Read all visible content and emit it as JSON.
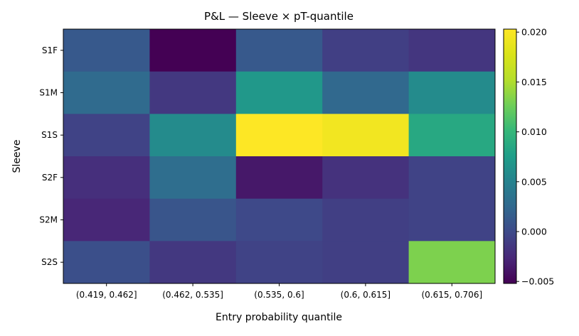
{
  "chart_data": {
    "type": "heatmap",
    "title": "P&L — Sleeve × pT-quantile",
    "xlabel": "Entry probability quantile",
    "ylabel": "Sleeve",
    "x_categories": [
      "(0.419, 0.462]",
      "(0.462, 0.535]",
      "(0.535, 0.6]",
      "(0.6, 0.615]",
      "(0.615, 0.706]"
    ],
    "y_categories": [
      "S1F",
      "S1M",
      "S1S",
      "S2F",
      "S2M",
      "S2S"
    ],
    "values": [
      [
        0.0012,
        -0.0052,
        0.0012,
        -0.0009,
        -0.0016
      ],
      [
        0.0027,
        -0.0014,
        0.007,
        0.0025,
        0.0058
      ],
      [
        -0.0006,
        0.0058,
        0.0203,
        0.0195,
        0.0086
      ],
      [
        -0.0021,
        0.003,
        -0.0037,
        -0.0019,
        -0.0006
      ],
      [
        -0.0027,
        0.0009,
        -0.0001,
        -0.0009,
        -0.0006
      ],
      [
        0.0004,
        -0.0014,
        -0.0006,
        -0.0009,
        0.0132
      ]
    ],
    "colormap": "viridis",
    "colorbar": {
      "range": [
        -0.0052,
        0.0203
      ],
      "ticks": [
        -0.005,
        0.0,
        0.005,
        0.01,
        0.015,
        0.02
      ],
      "tick_labels": [
        "−0.005",
        "0.000",
        "0.005",
        "0.010",
        "0.015",
        "0.020"
      ]
    }
  }
}
